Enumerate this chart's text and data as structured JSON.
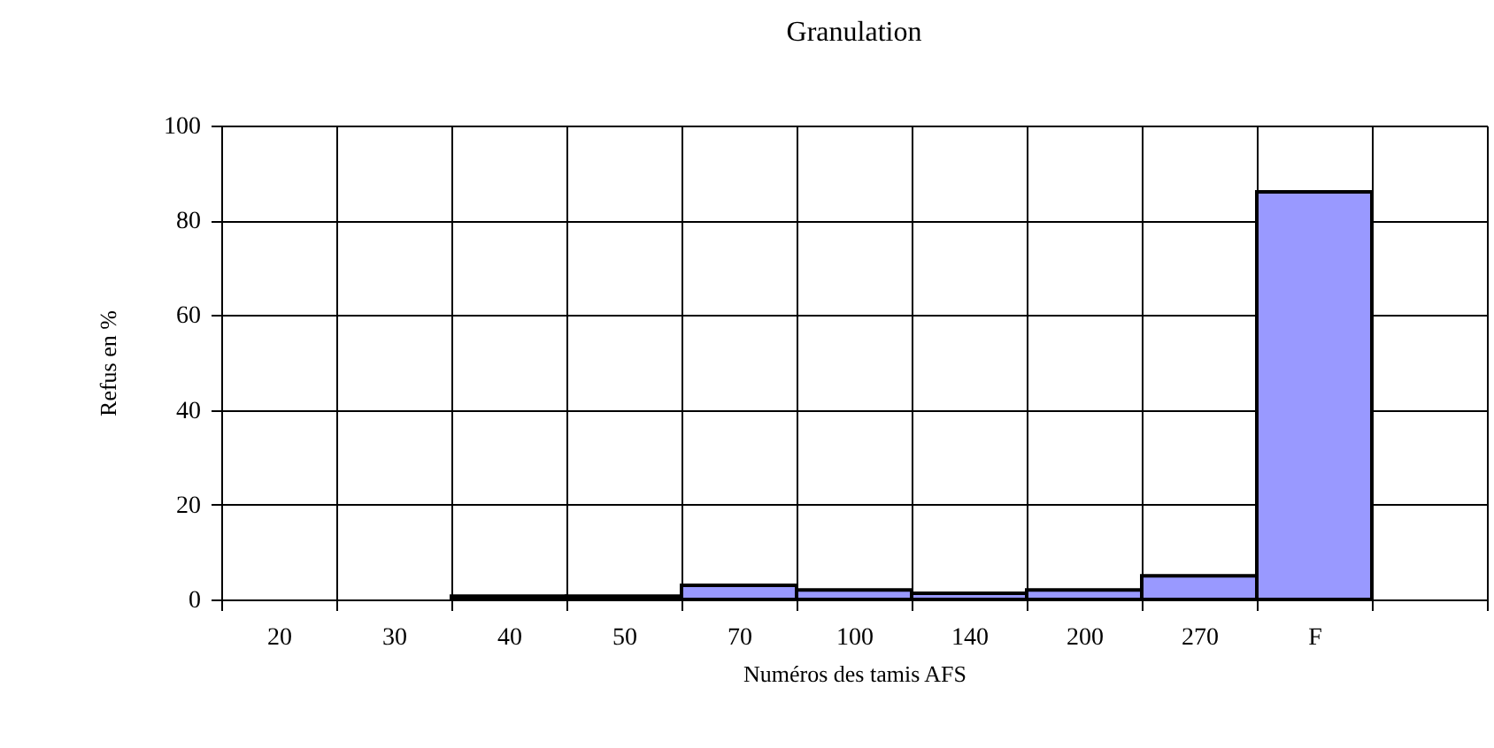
{
  "chart_data": {
    "type": "bar",
    "title": "Granulation",
    "xlabel": "Numéros des tamis AFS",
    "ylabel": "Refus en %",
    "categories": [
      "20",
      "30",
      "40",
      "50",
      "70",
      "100",
      "140",
      "200",
      "270",
      "F",
      null
    ],
    "values": [
      null,
      null,
      0.7,
      0.7,
      3,
      2,
      1.3,
      2,
      5,
      86,
      null
    ],
    "color": "#9999ff",
    "ylim": [
      0,
      100
    ],
    "yticks": [
      0,
      20,
      40,
      60,
      80,
      100
    ],
    "grid": true
  }
}
